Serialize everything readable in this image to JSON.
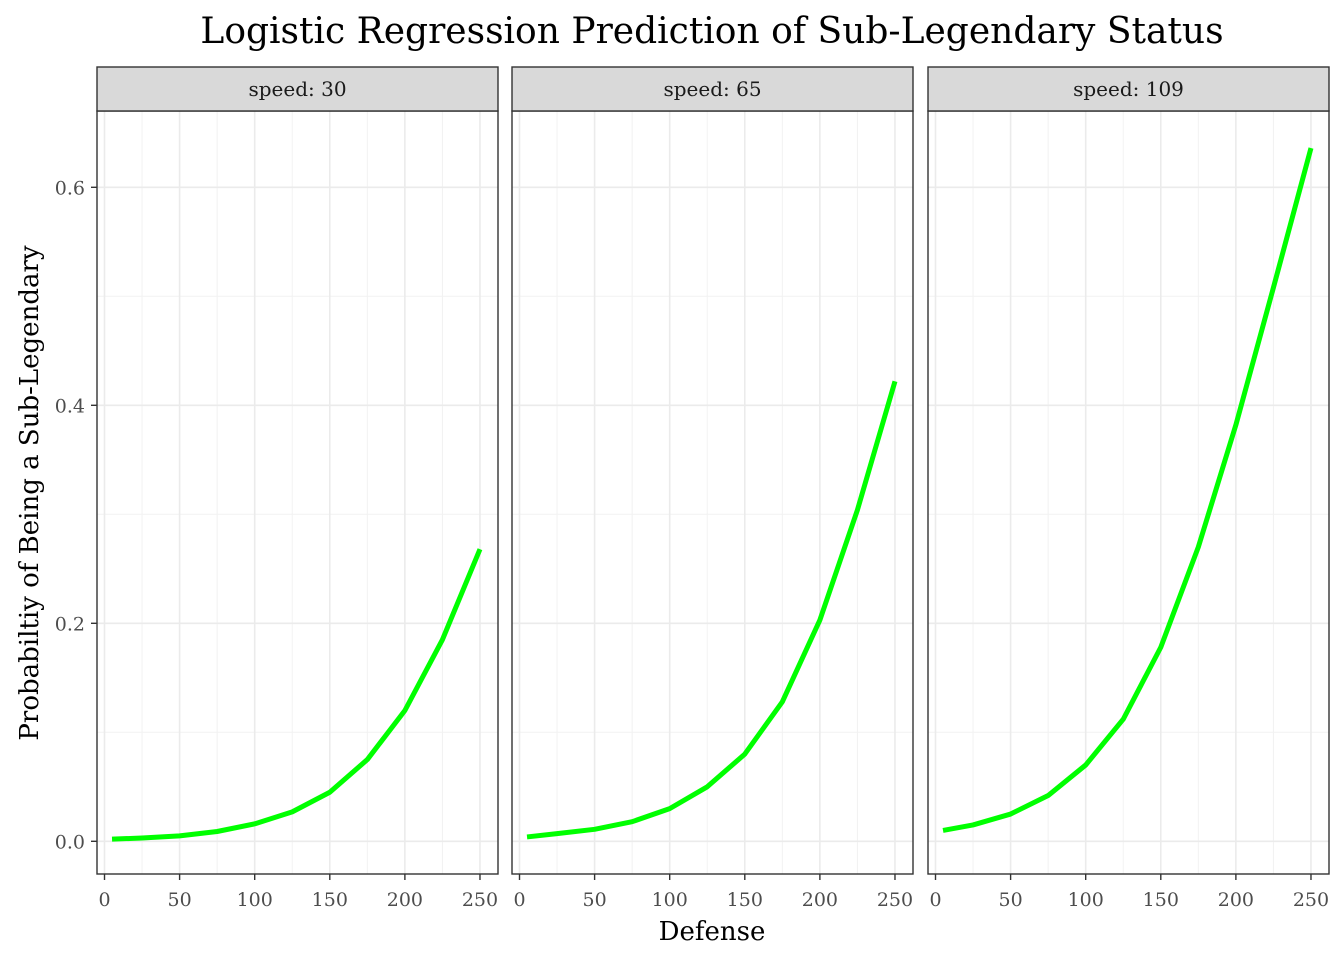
{
  "chart_data": {
    "type": "line",
    "title": "Logistic Regression Prediction of Sub-Legendary Status",
    "xlabel": "Defense",
    "ylabel": "Probabiltiy of Being a Sub-Legendary",
    "xlim": [
      -5,
      262
    ],
    "ylim": [
      -0.03,
      0.67
    ],
    "x_ticks": [
      0,
      50,
      100,
      150,
      200,
      250
    ],
    "x_tick_labels": [
      "0",
      "50",
      "100",
      "150",
      "200",
      "250"
    ],
    "y_ticks": [
      0.0,
      0.2,
      0.4,
      0.6
    ],
    "y_tick_labels": [
      "0.0",
      "0.2",
      "0.4",
      "0.6"
    ],
    "grid": true,
    "line_color": "#00ff00",
    "panels": [
      {
        "strip_label": "speed: 30",
        "series": [
          {
            "x": [
              5,
              25,
              50,
              75,
              100,
              125,
              150,
              175,
              200,
              225,
              250
            ],
            "y": [
              0.002,
              0.003,
              0.005,
              0.009,
              0.016,
              0.027,
              0.045,
              0.075,
              0.12,
              0.185,
              0.268
            ]
          }
        ]
      },
      {
        "strip_label": "speed: 65",
        "series": [
          {
            "x": [
              5,
              25,
              50,
              75,
              100,
              125,
              150,
              175,
              200,
              225,
              250
            ],
            "y": [
              0.004,
              0.007,
              0.011,
              0.018,
              0.03,
              0.05,
              0.08,
              0.128,
              0.203,
              0.304,
              0.422
            ]
          }
        ]
      },
      {
        "strip_label": "speed: 109",
        "series": [
          {
            "x": [
              5,
              25,
              50,
              75,
              100,
              125,
              150,
              175,
              200,
              225,
              250
            ],
            "y": [
              0.01,
              0.015,
              0.025,
              0.042,
              0.07,
              0.112,
              0.178,
              0.27,
              0.382,
              0.508,
              0.636
            ]
          }
        ]
      }
    ]
  }
}
